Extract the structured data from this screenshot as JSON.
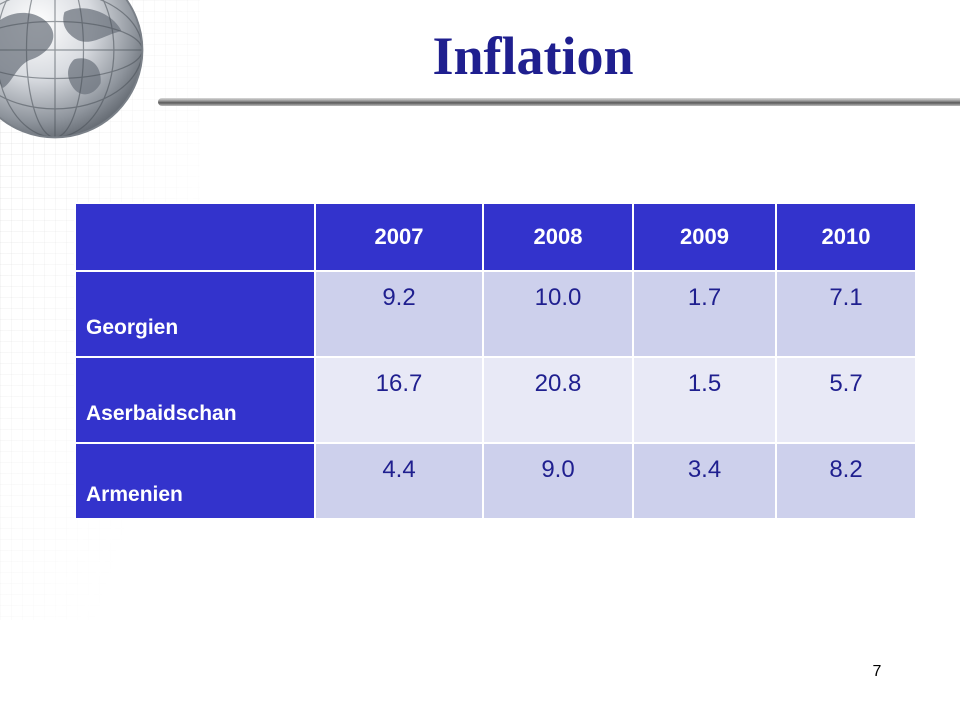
{
  "slide": {
    "title": "Inflation",
    "page_number": "7"
  },
  "table": {
    "columns": [
      "",
      "2007",
      "2008",
      "2009",
      "2010"
    ],
    "rows": [
      {
        "label": "Georgien",
        "values": [
          "9.2",
          "10.0",
          "1.7",
          "7.1"
        ]
      },
      {
        "label": "Aserbaidschan",
        "values": [
          "16.7",
          "20.8",
          "1.5",
          "5.7"
        ]
      },
      {
        "label": "Armenien",
        "values": [
          "4.4",
          "9.0",
          "3.4",
          "8.2"
        ]
      }
    ]
  },
  "colors": {
    "title": "#1f1f8f",
    "header_fill": "#3333cc",
    "row_fill_dark": "#cdd0ec",
    "row_fill_light": "#e8e9f6"
  },
  "icons": {
    "decoration": "globe-icon"
  }
}
